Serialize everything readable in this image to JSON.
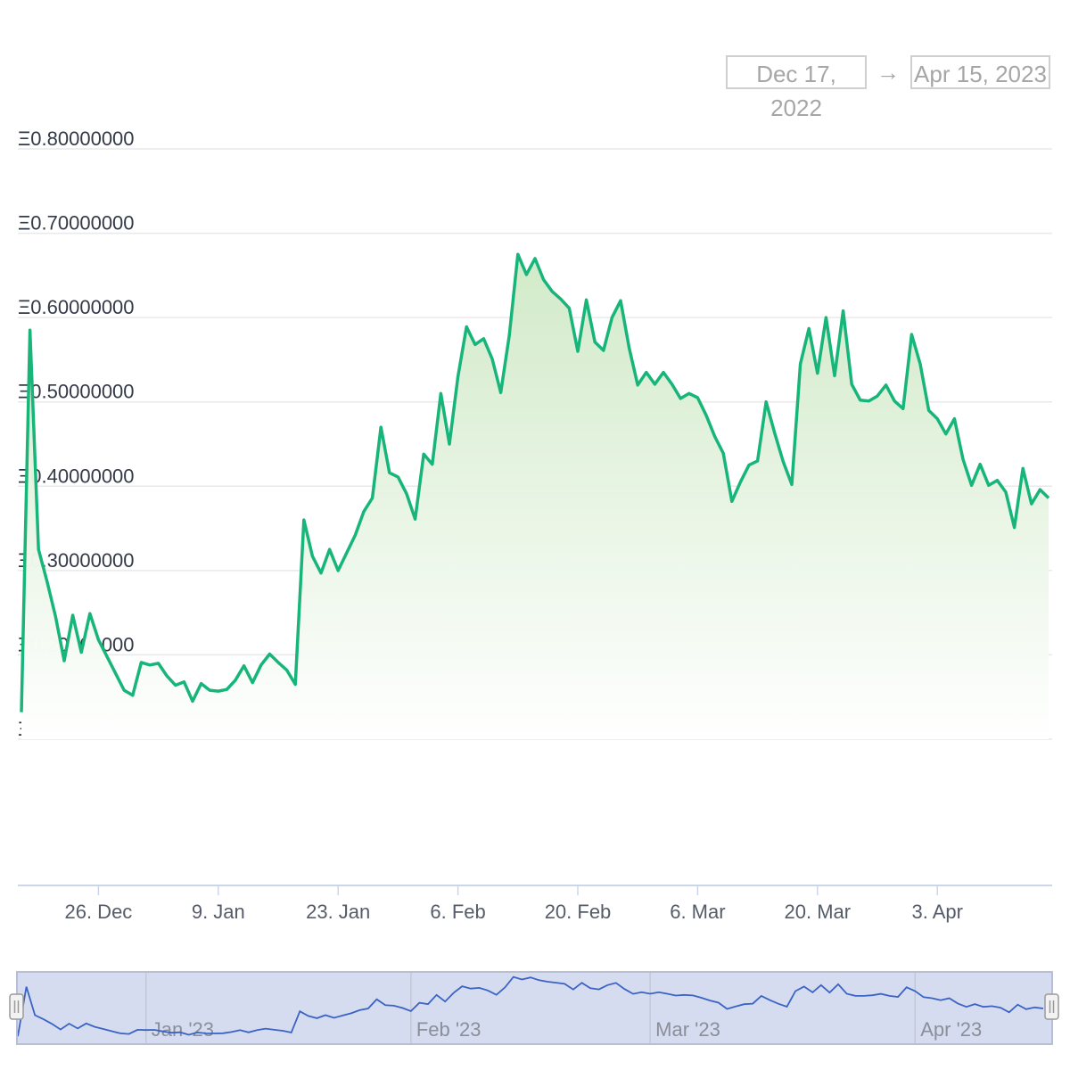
{
  "range_selector": {
    "from": "Dec 17, 2022",
    "arrow": "→",
    "to": "Apr 15, 2023"
  },
  "colors": {
    "line": "#17b57a",
    "area_top": "#cfe9c6",
    "navigator_line": "#3a63c4",
    "navigator_fill": "#d6dcef"
  },
  "chart_data": {
    "type": "area",
    "currency_symbol": "Ξ",
    "ylim": [
      0.1,
      0.8
    ],
    "y_ticks": [
      {
        "value": 0.8,
        "label": "Ξ0.80000000"
      },
      {
        "value": 0.7,
        "label": "Ξ0.70000000"
      },
      {
        "value": 0.6,
        "label": "Ξ0.60000000"
      },
      {
        "value": 0.5,
        "label": "Ξ0.50000000"
      },
      {
        "value": 0.4,
        "label": "Ξ0.40000000"
      },
      {
        "value": 0.3,
        "label": "Ξ0.30000000"
      },
      {
        "value": 0.2,
        "label": "Ξ0.20000000"
      },
      {
        "value": 0.1,
        "label": "Ξ0.10000000"
      }
    ],
    "x_start": "2022-12-17",
    "x_end": "2023-04-15",
    "x_ticks": [
      {
        "date": "2022-12-26",
        "label": "26. Dec"
      },
      {
        "date": "2023-01-09",
        "label": "9. Jan"
      },
      {
        "date": "2023-01-23",
        "label": "23. Jan"
      },
      {
        "date": "2023-02-06",
        "label": "6. Feb"
      },
      {
        "date": "2023-02-20",
        "label": "20. Feb"
      },
      {
        "date": "2023-03-06",
        "label": "6. Mar"
      },
      {
        "date": "2023-03-20",
        "label": "20. Mar"
      },
      {
        "date": "2023-04-03",
        "label": "3. Apr"
      }
    ],
    "grid": true,
    "series": [
      {
        "points": [
          [
            "2022-12-17",
            0.132
          ],
          [
            "2022-12-18",
            0.585
          ],
          [
            "2022-12-19",
            0.325
          ],
          [
            "2022-12-20",
            0.287
          ],
          [
            "2022-12-21",
            0.245
          ],
          [
            "2022-12-22",
            0.193
          ],
          [
            "2022-12-23",
            0.247
          ],
          [
            "2022-12-24",
            0.203
          ],
          [
            "2022-12-25",
            0.249
          ],
          [
            "2022-12-26",
            0.218
          ],
          [
            "2022-12-27",
            0.198
          ],
          [
            "2022-12-28",
            0.178
          ],
          [
            "2022-12-29",
            0.158
          ],
          [
            "2022-12-30",
            0.152
          ],
          [
            "2022-12-31",
            0.191
          ],
          [
            "2023-01-01",
            0.188
          ],
          [
            "2023-01-02",
            0.19
          ],
          [
            "2023-01-03",
            0.175
          ],
          [
            "2023-01-04",
            0.164
          ],
          [
            "2023-01-05",
            0.168
          ],
          [
            "2023-01-06",
            0.145
          ],
          [
            "2023-01-07",
            0.166
          ],
          [
            "2023-01-08",
            0.158
          ],
          [
            "2023-01-09",
            0.157
          ],
          [
            "2023-01-10",
            0.159
          ],
          [
            "2023-01-11",
            0.17
          ],
          [
            "2023-01-12",
            0.187
          ],
          [
            "2023-01-13",
            0.167
          ],
          [
            "2023-01-14",
            0.188
          ],
          [
            "2023-01-15",
            0.201
          ],
          [
            "2023-01-16",
            0.191
          ],
          [
            "2023-01-17",
            0.182
          ],
          [
            "2023-01-18",
            0.165
          ],
          [
            "2023-01-19",
            0.36
          ],
          [
            "2023-01-20",
            0.317
          ],
          [
            "2023-01-21",
            0.297
          ],
          [
            "2023-01-22",
            0.325
          ],
          [
            "2023-01-23",
            0.3
          ],
          [
            "2023-01-24",
            0.321
          ],
          [
            "2023-01-25",
            0.342
          ],
          [
            "2023-01-26",
            0.37
          ],
          [
            "2023-01-27",
            0.386
          ],
          [
            "2023-01-28",
            0.47
          ],
          [
            "2023-01-29",
            0.416
          ],
          [
            "2023-01-30",
            0.411
          ],
          [
            "2023-01-31",
            0.391
          ],
          [
            "2023-02-01",
            0.361
          ],
          [
            "2023-02-02",
            0.438
          ],
          [
            "2023-02-03",
            0.426
          ],
          [
            "2023-02-04",
            0.51
          ],
          [
            "2023-02-05",
            0.45
          ],
          [
            "2023-02-06",
            0.53
          ],
          [
            "2023-02-07",
            0.589
          ],
          [
            "2023-02-08",
            0.568
          ],
          [
            "2023-02-09",
            0.575
          ],
          [
            "2023-02-10",
            0.551
          ],
          [
            "2023-02-11",
            0.511
          ],
          [
            "2023-02-12",
            0.579
          ],
          [
            "2023-02-13",
            0.675
          ],
          [
            "2023-02-14",
            0.651
          ],
          [
            "2023-02-15",
            0.67
          ],
          [
            "2023-02-16",
            0.645
          ],
          [
            "2023-02-17",
            0.631
          ],
          [
            "2023-02-18",
            0.622
          ],
          [
            "2023-02-19",
            0.611
          ],
          [
            "2023-02-20",
            0.56
          ],
          [
            "2023-02-21",
            0.621
          ],
          [
            "2023-02-22",
            0.571
          ],
          [
            "2023-02-23",
            0.561
          ],
          [
            "2023-02-24",
            0.6
          ],
          [
            "2023-02-25",
            0.62
          ],
          [
            "2023-02-26",
            0.564
          ],
          [
            "2023-02-27",
            0.52
          ],
          [
            "2023-02-28",
            0.535
          ],
          [
            "2023-03-01",
            0.521
          ],
          [
            "2023-03-02",
            0.535
          ],
          [
            "2023-03-03",
            0.521
          ],
          [
            "2023-03-04",
            0.504
          ],
          [
            "2023-03-05",
            0.51
          ],
          [
            "2023-03-06",
            0.505
          ],
          [
            "2023-03-07",
            0.484
          ],
          [
            "2023-03-08",
            0.459
          ],
          [
            "2023-03-09",
            0.439
          ],
          [
            "2023-03-10",
            0.382
          ],
          [
            "2023-03-11",
            0.405
          ],
          [
            "2023-03-12",
            0.425
          ],
          [
            "2023-03-13",
            0.43
          ],
          [
            "2023-03-14",
            0.5
          ],
          [
            "2023-03-15",
            0.463
          ],
          [
            "2023-03-16",
            0.429
          ],
          [
            "2023-03-17",
            0.402
          ],
          [
            "2023-03-18",
            0.545
          ],
          [
            "2023-03-19",
            0.587
          ],
          [
            "2023-03-20",
            0.534
          ],
          [
            "2023-03-21",
            0.6
          ],
          [
            "2023-03-22",
            0.531
          ],
          [
            "2023-03-23",
            0.608
          ],
          [
            "2023-03-24",
            0.521
          ],
          [
            "2023-03-25",
            0.502
          ],
          [
            "2023-03-26",
            0.501
          ],
          [
            "2023-03-27",
            0.507
          ],
          [
            "2023-03-28",
            0.52
          ],
          [
            "2023-03-29",
            0.501
          ],
          [
            "2023-03-30",
            0.492
          ],
          [
            "2023-03-31",
            0.58
          ],
          [
            "2023-04-01",
            0.545
          ],
          [
            "2023-04-02",
            0.49
          ],
          [
            "2023-04-03",
            0.48
          ],
          [
            "2023-04-04",
            0.462
          ],
          [
            "2023-04-05",
            0.48
          ],
          [
            "2023-04-06",
            0.432
          ],
          [
            "2023-04-07",
            0.401
          ],
          [
            "2023-04-08",
            0.426
          ],
          [
            "2023-04-09",
            0.401
          ],
          [
            "2023-04-10",
            0.407
          ],
          [
            "2023-04-11",
            0.393
          ],
          [
            "2023-04-12",
            0.351
          ],
          [
            "2023-04-13",
            0.421
          ],
          [
            "2023-04-14",
            0.379
          ],
          [
            "2023-04-15",
            0.396
          ],
          [
            "2023-04-16",
            0.386
          ]
        ]
      }
    ],
    "navigator": {
      "labels": [
        {
          "date": "2023-01-01",
          "label": "Jan '23"
        },
        {
          "date": "2023-02-01",
          "label": "Feb '23"
        },
        {
          "date": "2023-03-01",
          "label": "Mar '23"
        },
        {
          "date": "2023-04-01",
          "label": "Apr '23"
        }
      ]
    }
  }
}
